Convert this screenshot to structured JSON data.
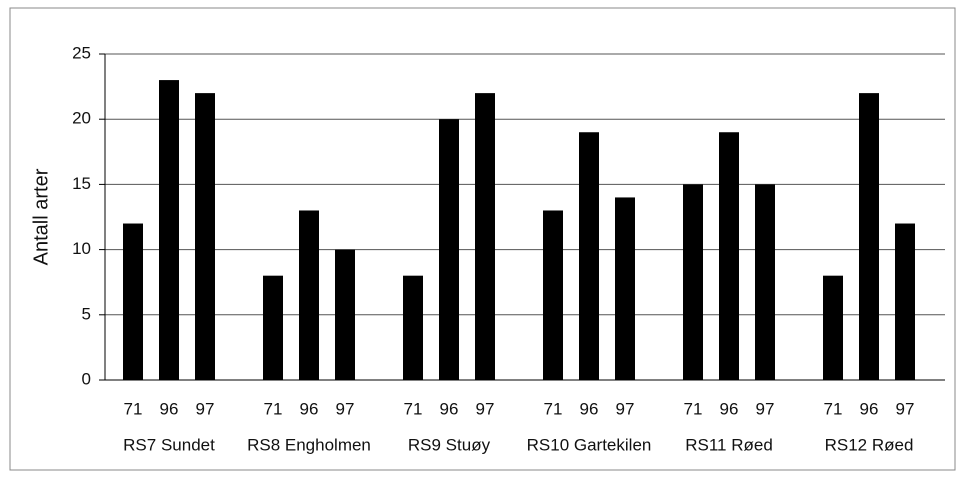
{
  "chart_data": {
    "type": "bar",
    "y_label": "Antall arter",
    "categories": [
      "RS7 Sundet",
      "RS8 Engholmen",
      "RS9 Stuøy",
      "RS10 Gartekilen",
      "RS11 Røed",
      "RS12 Røed"
    ],
    "series": [
      {
        "name": "71",
        "color": "#000000",
        "values": [
          12,
          8,
          8,
          13,
          15,
          8
        ]
      },
      {
        "name": "96",
        "color": "#000000",
        "values": [
          23,
          13,
          20,
          19,
          19,
          22
        ]
      },
      {
        "name": "97",
        "color": "#000000",
        "values": [
          22,
          10,
          22,
          14,
          15,
          12
        ]
      }
    ],
    "ylim": [
      0,
      25
    ],
    "yticks": [
      0,
      5,
      10,
      15,
      20,
      25
    ],
    "grid": true
  }
}
